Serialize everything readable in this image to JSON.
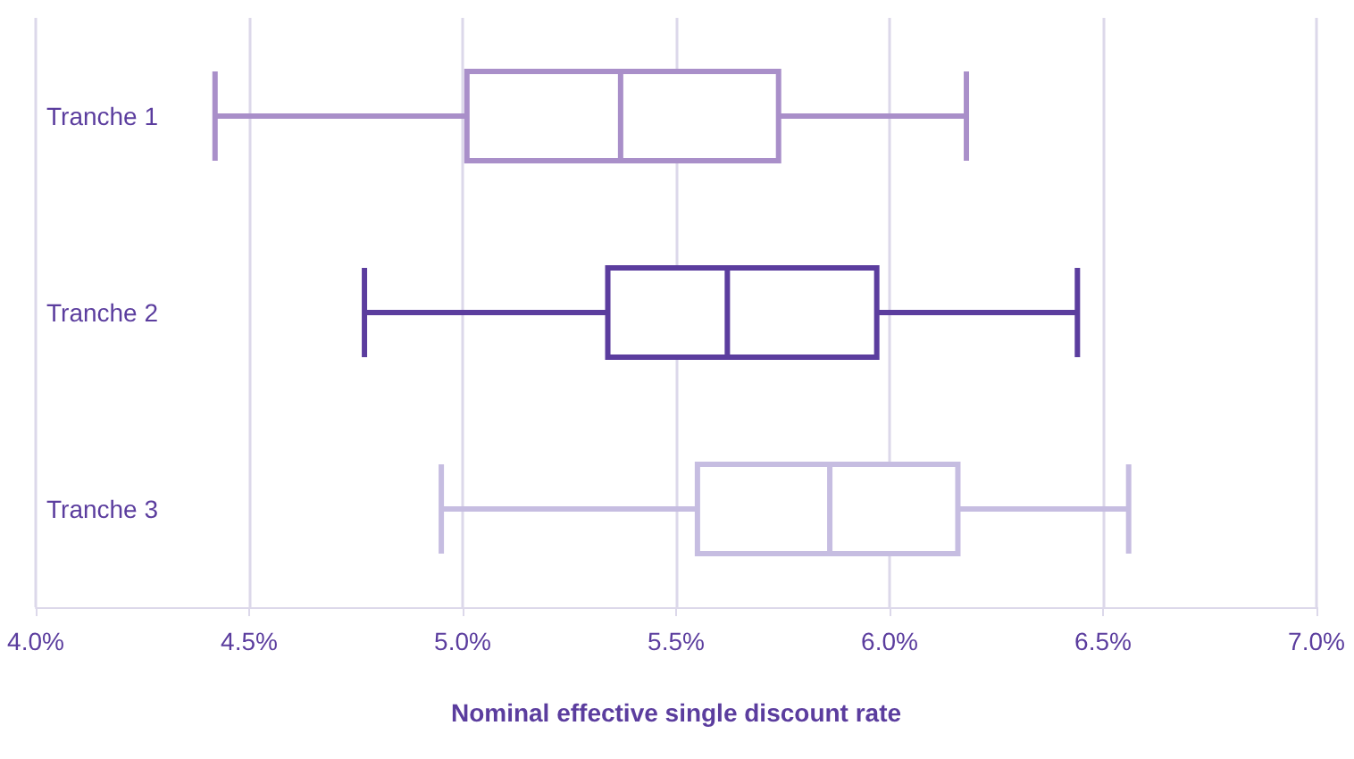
{
  "chart_data": {
    "type": "box",
    "xlabel": "Nominal effective single discount rate",
    "orientation": "horizontal",
    "categories": [
      "Tranche 1",
      "Tranche 2",
      "Tranche 3"
    ],
    "boxes": [
      {
        "low": 4.42,
        "q1": 5.01,
        "median": 5.37,
        "q3": 5.74,
        "high": 6.18
      },
      {
        "low": 4.77,
        "q1": 5.34,
        "median": 5.62,
        "q3": 5.97,
        "high": 6.44
      },
      {
        "low": 4.95,
        "q1": 5.55,
        "median": 5.86,
        "q3": 6.16,
        "high": 6.56
      }
    ],
    "colors": [
      "#a98fc9",
      "#5b3d9e",
      "#c6bde1"
    ],
    "xlim": [
      4,
      7
    ],
    "xticks": [
      {
        "value": 4,
        "label": "4.0%"
      },
      {
        "value": 4.5,
        "label": "4.5%"
      },
      {
        "value": 5,
        "label": "5.0%"
      },
      {
        "value": 5.5,
        "label": "5.5%"
      },
      {
        "value": 6,
        "label": "6.0%"
      },
      {
        "value": 6.5,
        "label": "6.5%"
      },
      {
        "value": 7,
        "label": "7.0%"
      }
    ],
    "grid": "x"
  }
}
